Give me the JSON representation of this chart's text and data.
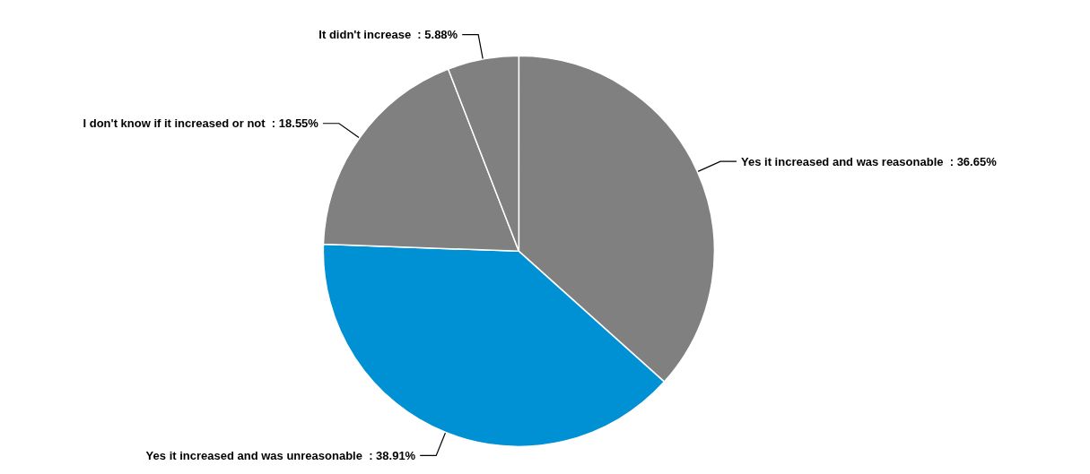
{
  "chart_data": {
    "type": "pie",
    "categories": [
      "Yes it increased and was reasonable",
      "Yes it increased and was unreasonable",
      "I don't know if it increased or not",
      "It didn't increase"
    ],
    "values": [
      36.65,
      38.91,
      18.55,
      5.88
    ],
    "colors": [
      "#808080",
      "#0090d4",
      "#808080",
      "#808080"
    ],
    "value_labels": [
      ": 36.65%",
      ": 38.91%",
      ": 18.55%",
      ": 5.88%"
    ],
    "legend": false
  }
}
